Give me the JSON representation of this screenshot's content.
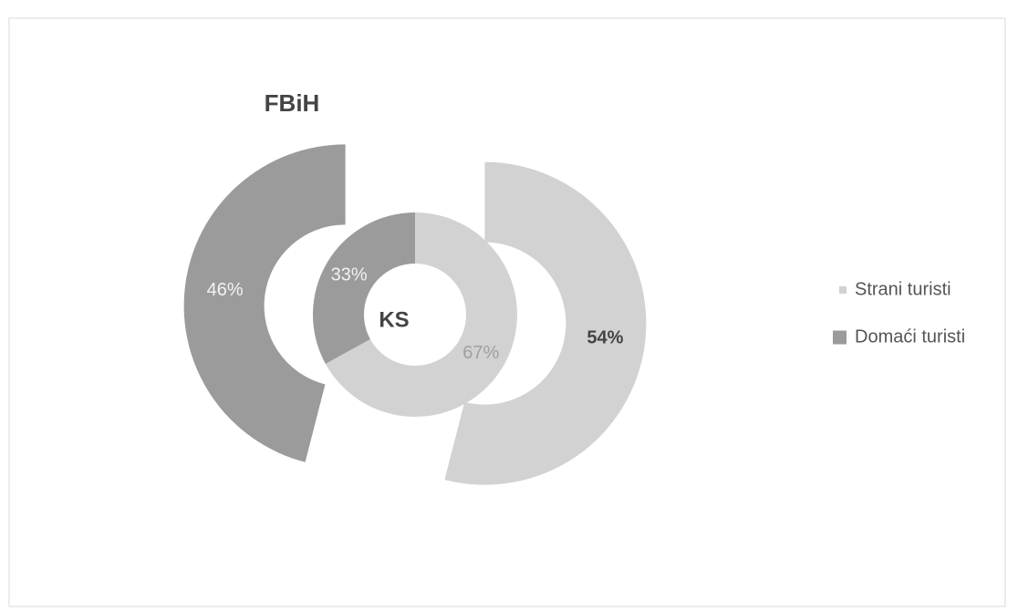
{
  "chart_data": {
    "type": "doughnut",
    "categories": [
      "Strani turisti",
      "Domaći turisti"
    ],
    "colors": [
      "#d2d2d2",
      "#9b9b9b"
    ],
    "series": [
      {
        "name": "FBiH",
        "values": [
          54,
          46
        ],
        "value_labels": [
          "54%",
          "46%"
        ]
      },
      {
        "name": "KS",
        "values": [
          67,
          33
        ],
        "value_labels": [
          "67%",
          "33%"
        ]
      }
    ]
  }
}
